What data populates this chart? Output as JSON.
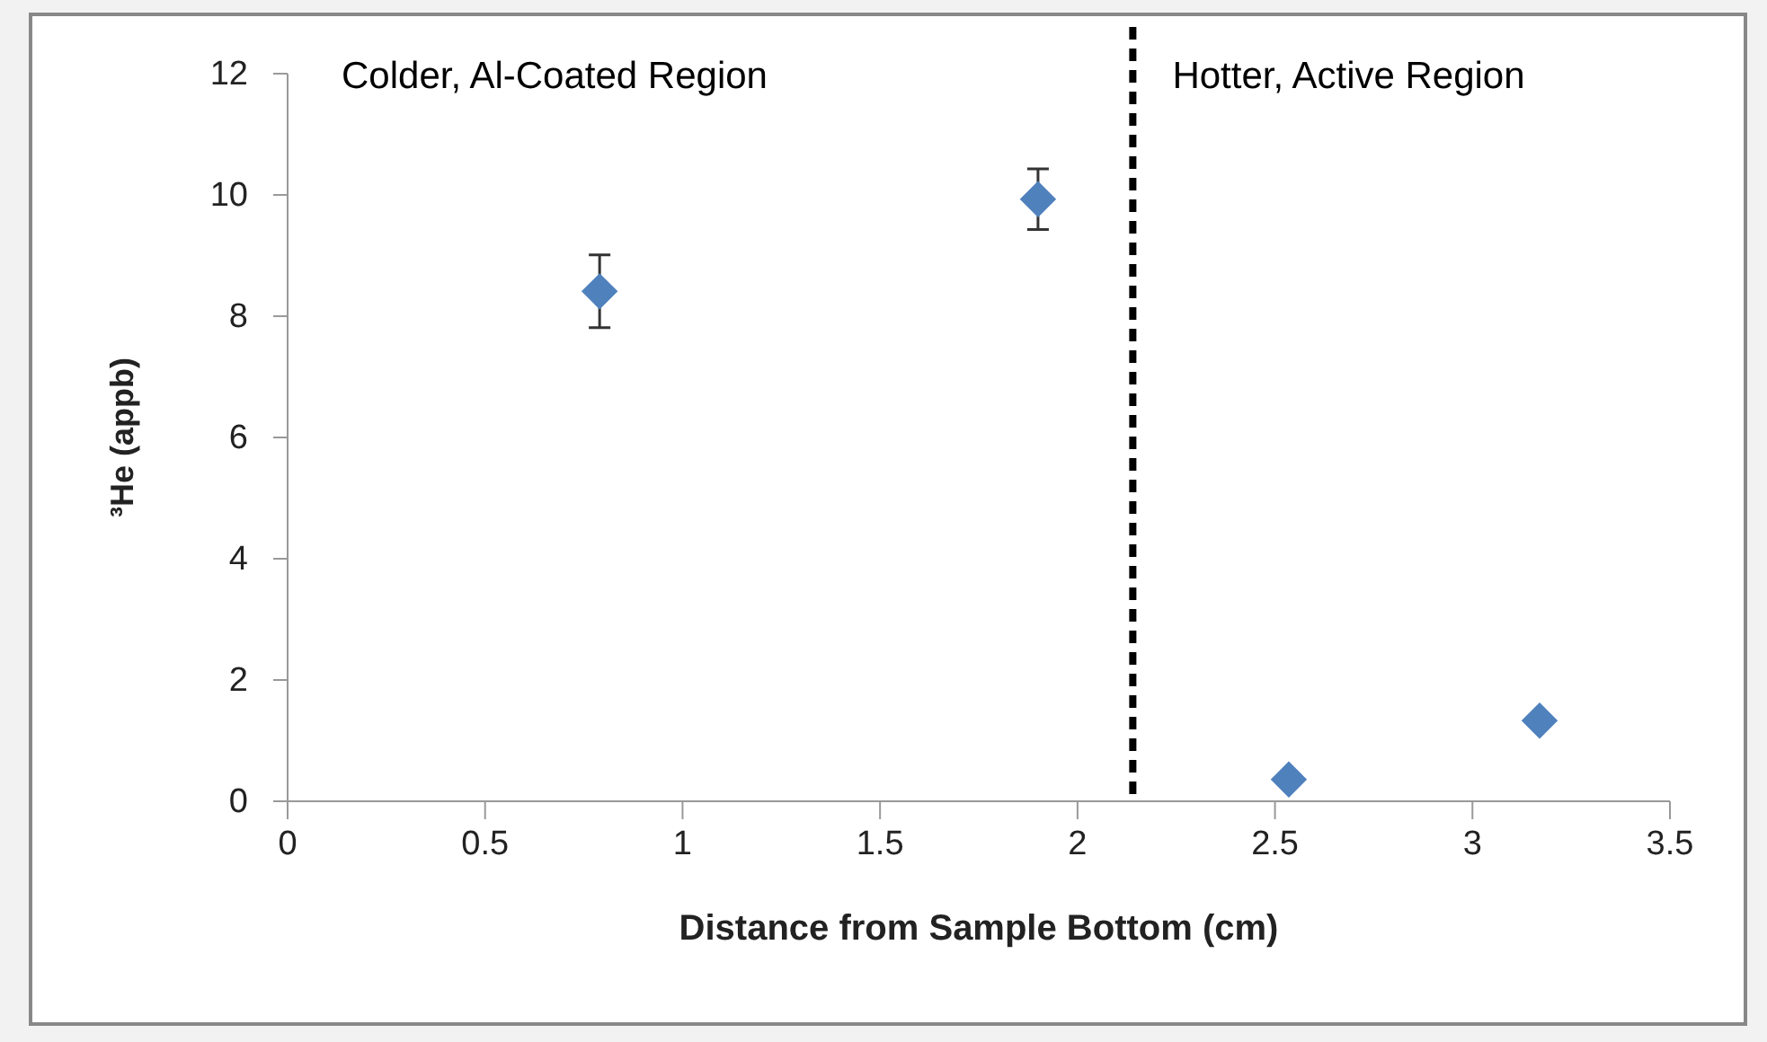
{
  "chart_data": {
    "type": "scatter",
    "xlabel": "Distance from Sample Bottom (cm)",
    "ylabel": "³He (appb)",
    "x": [
      0.79,
      1.9,
      2.535,
      3.17
    ],
    "series": [
      {
        "color": "#4f81bd",
        "values": [
          8.41,
          9.93,
          0.36,
          1.33
        ],
        "errors": [
          0.6,
          0.5,
          null,
          null
        ]
      }
    ],
    "marker": "diamond",
    "xlim": [
      0,
      3.5
    ],
    "xticks": [
      0,
      0.5,
      1,
      1.5,
      2,
      2.5,
      3,
      3.5
    ],
    "ylim": [
      0,
      12
    ],
    "yticks": [
      0,
      2,
      4,
      6,
      8,
      10,
      12
    ],
    "grid": false,
    "ref_lines": [
      {
        "axis": "x",
        "value": 2.14,
        "color": "#000000",
        "line_style": "dashed"
      }
    ],
    "annotations": [
      "Colder, Al-Coated Region",
      "Hotter, Active Region"
    ]
  }
}
